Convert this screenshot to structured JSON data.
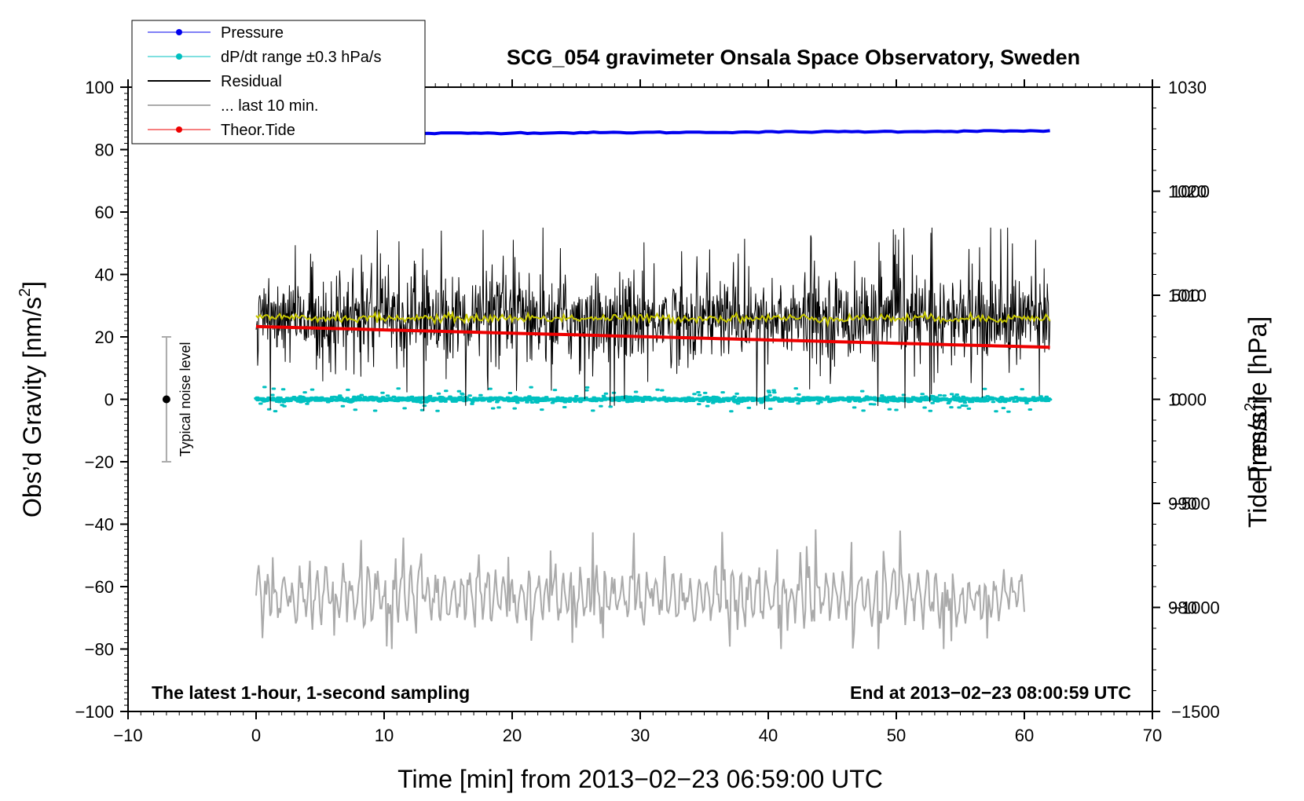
{
  "chart_data": {
    "type": "line",
    "title": "SCG_054 gravimeter Onsala Space Observatory, Sweden",
    "xlabel": "Time [min] from 2013−02−23 06:59:00 UTC",
    "ylabel": "Obs’d Gravity [nm/s²]",
    "ylabel_parts": {
      "main": "Obs’d Gravity [nm/s",
      "sup": "2",
      "end": "]"
    },
    "y2label_pressure": "Pressure [hPa]",
    "y2label_tide": "Tide [nm/s²]",
    "y2label_tide_parts": {
      "main": "Tide [nm/s",
      "sup": "2",
      "end": "]"
    },
    "xlim": [
      -10,
      70
    ],
    "ylim": [
      -100,
      100
    ],
    "pressure_lim": [
      970,
      1030
    ],
    "tide_lim": [
      -1500,
      1500
    ],
    "x_ticks": [
      "−10",
      "0",
      "10",
      "20",
      "30",
      "40",
      "50",
      "60",
      "70"
    ],
    "x_tick_values": [
      -10,
      0,
      10,
      20,
      30,
      40,
      50,
      60,
      70
    ],
    "y_ticks": [
      "−100",
      "−80",
      "−60",
      "−40",
      "−20",
      "0",
      "20",
      "40",
      "60",
      "80",
      "100"
    ],
    "y_tick_values": [
      -100,
      -80,
      -60,
      -40,
      -20,
      0,
      20,
      40,
      60,
      80,
      100
    ],
    "pressure_ticks": [
      "980",
      "990",
      "1000",
      "1010",
      "1020",
      "1030"
    ],
    "pressure_tick_values": [
      980,
      990,
      1000,
      1010,
      1020,
      1030
    ],
    "tide_ticks": [
      "−1500",
      "−1000",
      "−500",
      "0",
      "500",
      "1000"
    ],
    "tide_tick_values": [
      -1500,
      -1000,
      -500,
      0,
      500,
      1000
    ],
    "legend": [
      {
        "label": "Pressure",
        "color": "#0000ee",
        "marker": true
      },
      {
        "label": "dP/dt range ±0.3 hPa/s",
        "color": "#00c0c0",
        "marker": true
      },
      {
        "label": "Residual",
        "color": "#000000",
        "marker": false
      },
      {
        "label": "... last 10 min.",
        "color": "#aaaaaa",
        "marker": false
      },
      {
        "label": "Theor.Tide",
        "color": "#ee0000",
        "marker": true
      }
    ],
    "series": [
      {
        "name": "Pressure",
        "axis": "pressure",
        "color": "#0000ee",
        "x": [
          0,
          62
        ],
        "values": [
          1025.5,
          1025.8
        ]
      },
      {
        "name": "dP/dt range ±0.3 hPa/s",
        "axis": "pressure",
        "color": "#00c0c0",
        "x": [
          0,
          62
        ],
        "values": [
          1000,
          1000
        ],
        "spread": 0.3
      },
      {
        "name": "Residual",
        "axis": "gravity",
        "color": "#000000",
        "x": [
          0,
          62
        ],
        "mean": 26,
        "amplitude_range": [
          -7,
          55
        ]
      },
      {
        "name": "Residual running mean",
        "axis": "gravity",
        "color": "#c8c800",
        "x": [
          0,
          62
        ],
        "values": [
          26,
          26
        ]
      },
      {
        "name": "... last 10 min.",
        "axis": "gravity",
        "color": "#aaaaaa",
        "x": [
          0,
          60
        ],
        "mean": -63,
        "amplitude_range": [
          -80,
          -35
        ]
      },
      {
        "name": "Theor.Tide",
        "axis": "tide",
        "color": "#ee0000",
        "x": [
          0,
          62
        ],
        "values": [
          350,
          250
        ]
      }
    ],
    "annotations": {
      "bottom_left": "The latest 1-hour, 1-second sampling",
      "bottom_right": "End at 2013−02−23 08:00:59 UTC",
      "noise_label": "Typical noise level",
      "noise_bar": {
        "x": -7,
        "center": 0,
        "low": -20,
        "high": 20
      }
    },
    "colors": {
      "pressure": "#0000ee",
      "dpdt": "#00c0c0",
      "residual": "#000000",
      "running_mean": "#c8c800",
      "last10": "#aaaaaa",
      "tide": "#ee0000"
    }
  }
}
